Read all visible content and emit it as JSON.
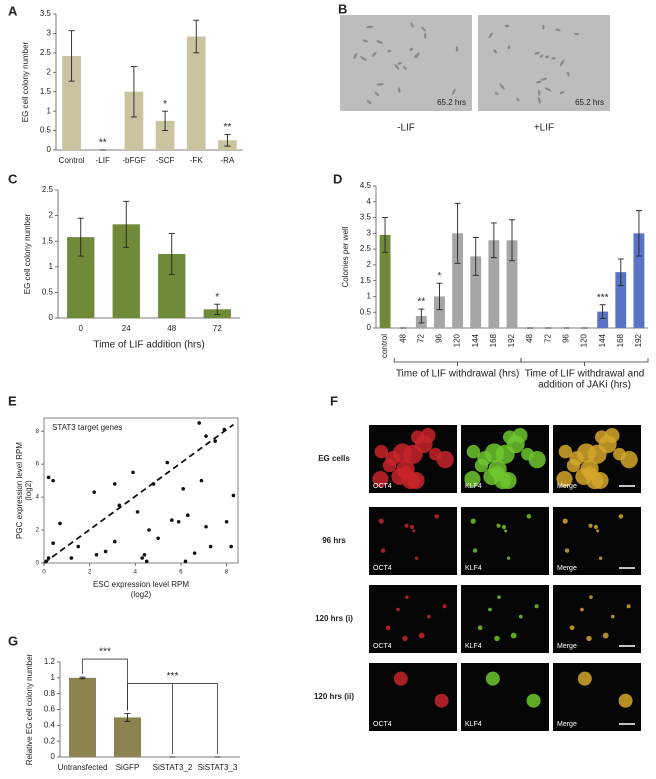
{
  "panel_labels": [
    "A",
    "B",
    "C",
    "D",
    "E",
    "F",
    "G"
  ],
  "chart_data": [
    {
      "type": "bar",
      "ylabel": "EG cell colony number",
      "categories": [
        "Control",
        "-LIF",
        "-bFGF",
        "-SCF",
        "-FK",
        "-RA"
      ],
      "values": [
        2.42,
        0,
        1.5,
        0.75,
        2.92,
        0.25
      ],
      "errors": [
        0.65,
        0,
        0.65,
        0.25,
        0.42,
        0.15
      ],
      "significance": [
        null,
        "**",
        null,
        "*",
        null,
        "**"
      ],
      "color": "#c9c49f",
      "ylim": [
        0,
        3.5
      ],
      "yticks": [
        0,
        0.5,
        1,
        1.5,
        2,
        2.5,
        3,
        3.5
      ]
    },
    {
      "type": "bar",
      "ylabel": "EG cell colony number",
      "xlabel": "Time of LIF addition (hrs)",
      "categories": [
        "0",
        "24",
        "48",
        "72"
      ],
      "values": [
        1.58,
        1.83,
        1.25,
        0.17
      ],
      "errors": [
        0.37,
        0.45,
        0.4,
        0.1
      ],
      "significance": [
        null,
        null,
        null,
        "*"
      ],
      "color": "#6f8b3a",
      "ylim": [
        0,
        2.5
      ],
      "yticks": [
        0,
        0.5,
        1,
        1.5,
        2,
        2.5
      ]
    },
    {
      "type": "bar",
      "ylabel": "Colonies per well",
      "categories": [
        "control",
        "48",
        "72",
        "96",
        "120",
        "144",
        "168",
        "192",
        "48",
        "72",
        "96",
        "120",
        "144",
        "168",
        "192"
      ],
      "values": [
        2.95,
        0,
        0.38,
        1.0,
        3.0,
        2.27,
        2.78,
        2.78,
        0,
        0,
        0,
        0,
        0.52,
        1.77,
        3.0
      ],
      "errors": [
        0.55,
        0,
        0.22,
        0.42,
        0.95,
        0.6,
        0.55,
        0.65,
        0,
        0,
        0,
        0,
        0.22,
        0.42,
        0.72
      ],
      "significance": [
        null,
        null,
        "**",
        "*",
        null,
        null,
        null,
        null,
        null,
        null,
        null,
        null,
        "***",
        null,
        null
      ],
      "colors": [
        "#6f8b3a",
        "#a6a6a6",
        "#a6a6a6",
        "#a6a6a6",
        "#a6a6a6",
        "#a6a6a6",
        "#a6a6a6",
        "#a6a6a6",
        "#5b73c4",
        "#5b73c4",
        "#5b73c4",
        "#5b73c4",
        "#5b73c4",
        "#5b73c4",
        "#5b73c4"
      ],
      "group_labels": [
        [
          "Time of LIF withdrawal (hrs)"
        ],
        [
          "Time of LIF withdrawal and",
          "addition of JAKi (hrs)"
        ]
      ],
      "ylim": [
        0,
        4.5
      ],
      "yticks": [
        0,
        0.5,
        1,
        1.5,
        2,
        2.5,
        3,
        3.5,
        4,
        4.5
      ]
    },
    {
      "type": "scatter",
      "title": "STAT3 target genes",
      "xlabel": [
        "ESC expression level RPM",
        "(log2)"
      ],
      "ylabel": [
        "PGC expression level RPM",
        "(log2)"
      ],
      "x": [
        0.1,
        0.2,
        0.2,
        0.4,
        0.4,
        0.7,
        1.2,
        1.5,
        2.2,
        2.3,
        2.7,
        3.1,
        3.1,
        3.3,
        3.9,
        4.1,
        4.3,
        4.4,
        4.5,
        4.6,
        4.8,
        5.0,
        5.4,
        5.6,
        5.9,
        6.1,
        6.2,
        6.3,
        6.6,
        6.8,
        6.9,
        7.1,
        7.1,
        7.3,
        7.5,
        7.9,
        8.0,
        8.2,
        8.3
      ],
      "y": [
        0.1,
        0.3,
        5.2,
        5.0,
        1.2,
        2.4,
        0.3,
        1.0,
        4.3,
        0.5,
        0.7,
        4.8,
        1.3,
        3.5,
        5.5,
        3.1,
        0.3,
        0.5,
        0.1,
        2.0,
        4.8,
        1.5,
        6.1,
        2.6,
        2.5,
        4.5,
        0.1,
        2.9,
        0.6,
        8.5,
        5.0,
        7.7,
        2.2,
        1.0,
        7.4,
        8.1,
        2.5,
        1.0,
        4.1
      ],
      "color": "#111111",
      "trend_line": {
        "x": [
          0,
          8.3
        ],
        "y": [
          0,
          8.4
        ]
      },
      "xlim": [
        0,
        8.5
      ],
      "ylim": [
        0,
        8.8
      ],
      "xticks": [
        0,
        2,
        4,
        6,
        8
      ],
      "yticks": [
        0,
        2,
        4,
        6,
        8
      ]
    },
    {
      "type": "bar",
      "ylabel": "Relative EG cell colony number",
      "categories": [
        "Untransfected",
        "SiGFP",
        "SiSTAT3_2",
        "SiSTAT3_3"
      ],
      "values": [
        1.0,
        0.5,
        0,
        0
      ],
      "errors": [
        0.01,
        0.05,
        0,
        0
      ],
      "color": "#8b8350",
      "comparisons": [
        {
          "label": "***",
          "pair": [
            "Untransfected",
            "SiGFP"
          ]
        },
        {
          "label": "***",
          "pair": [
            "SiGFP",
            "SiSTAT3_2",
            "SiSTAT3_3"
          ]
        }
      ],
      "ylim": [
        0,
        1.2
      ],
      "yticks": [
        0,
        0.2,
        0.4,
        0.6,
        0.8,
        1,
        1.2
      ]
    }
  ],
  "image_panels": {
    "B": {
      "timestamps": [
        "65.2 hrs",
        "65.2 hrs"
      ],
      "captions": [
        "-LIF",
        "+LIF"
      ]
    },
    "F": {
      "rows": [
        "EG cells",
        "96 hrs",
        "120 hrs (i)",
        "120 hrs (ii)"
      ],
      "channels": [
        "OCT4",
        "KLF4",
        "Merge"
      ]
    }
  }
}
